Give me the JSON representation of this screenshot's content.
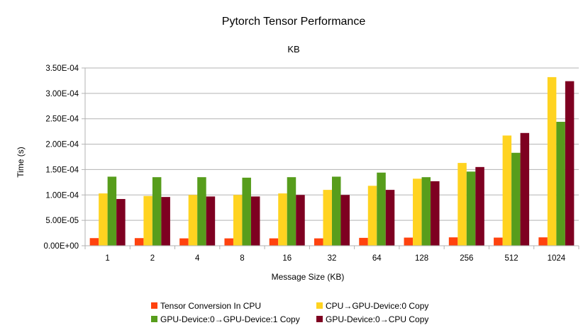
{
  "chart_data": {
    "type": "bar",
    "title": "Pytorch Tensor Performance",
    "subtitle": "KB",
    "xlabel": "Message Size (KB)",
    "ylabel": "Time (s)",
    "ylim": [
      0,
      0.00035
    ],
    "ytick_values": [
      0,
      5e-05,
      0.0001,
      0.00015,
      0.0002,
      0.00025,
      0.0003,
      0.00035
    ],
    "ytick_labels": [
      "0.00E+00",
      "5.00E-05",
      "1.00E-04",
      "1.50E-04",
      "2.00E-04",
      "2.50E-04",
      "3.00E-04",
      "3.50E-04"
    ],
    "grid": true,
    "legend_position": "bottom",
    "categories": [
      "1",
      "2",
      "4",
      "8",
      "16",
      "32",
      "64",
      "128",
      "256",
      "512",
      "1024"
    ],
    "series": [
      {
        "name": "Tensor Conversion In CPU",
        "color": "#ff420e",
        "values": [
          1.5e-05,
          1.5e-05,
          1.45e-05,
          1.45e-05,
          1.45e-05,
          1.45e-05,
          1.55e-05,
          1.6e-05,
          1.65e-05,
          1.6e-05,
          1.65e-05
        ]
      },
      {
        "name": "CPU→GPU-Device:0 Copy",
        "color": "#ffd320",
        "values": [
          0.000103,
          9.8e-05,
          0.0001,
          0.0001,
          0.000103,
          0.00011,
          0.000118,
          0.000132,
          0.000163,
          0.000217,
          0.000332
        ]
      },
      {
        "name": "GPU-Device:0→GPU-Device:1 Copy",
        "color": "#579d1c",
        "values": [
          0.000136,
          0.000135,
          0.000135,
          0.000134,
          0.000135,
          0.000136,
          0.000144,
          0.000135,
          0.000146,
          0.000183,
          0.000244
        ]
      },
      {
        "name": "GPU-Device:0→CPU Copy",
        "color": "#7e0021",
        "values": [
          9.2e-05,
          9.6e-05,
          9.7e-05,
          9.7e-05,
          0.0001,
          0.0001,
          0.00011,
          0.000127,
          0.000155,
          0.000222,
          0.000324
        ]
      }
    ]
  }
}
